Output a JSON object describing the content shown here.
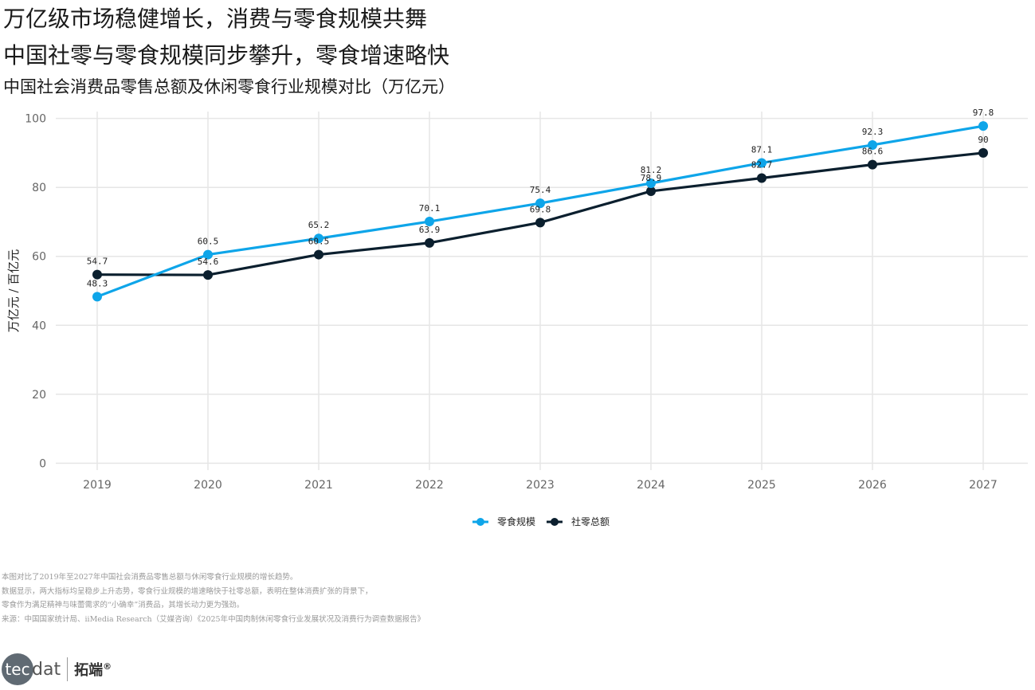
{
  "header": {
    "title_1": "万亿级市场稳健增长，消费与零食规模共舞",
    "title_2": "中国社零与零食规模同步攀升，零食增速略快",
    "subtitle": "中国社会消费品零售总额及休闲零食行业规模对比（万亿元）"
  },
  "chart_data": {
    "type": "line",
    "x": [
      "2019",
      "2020",
      "2021",
      "2022",
      "2023",
      "2024",
      "2025",
      "2026",
      "2027"
    ],
    "ylabel": "万亿元 / 百亿元",
    "ylim": [
      -2,
      102
    ],
    "yticks": [
      0,
      20,
      40,
      60,
      80,
      100
    ],
    "grid": true,
    "legend_position": "bottom-center",
    "series": [
      {
        "name": "零食规模",
        "color": "#0ea5e9",
        "values": [
          48.3,
          60.5,
          65.2,
          70.1,
          75.4,
          81.2,
          87.1,
          92.3,
          97.8
        ],
        "labels": [
          "48.3",
          "60.5",
          "65.2",
          "70.1",
          "75.4",
          "81.2",
          "87.1",
          "92.3",
          "97.8"
        ]
      },
      {
        "name": "社零总额",
        "color": "#0b1f2e",
        "values": [
          54.7,
          54.6,
          60.5,
          63.9,
          69.8,
          78.9,
          82.7,
          86.6,
          90
        ],
        "labels": [
          "54.7",
          "54.6",
          "60.5",
          "63.9",
          "69.8",
          "78.9",
          "82.7",
          "86.6",
          "90"
        ]
      }
    ]
  },
  "notes": [
    "本图对比了2019年至2027年中国社会消费品零售总额与休闲零食行业规模的增长趋势。",
    "数据显示，两大指标均呈稳步上升态势，零食行业规模的增速略快于社零总额，表明在整体消费扩张的背景下，",
    "零食作为满足精神与味蕾需求的“小确幸”消费品，其增长动力更为强劲。",
    "来源：中国国家统计局、iiMedia Research（艾媒咨询）《2025年中国肉制休闲零食行业发展状况及消费行为调查数据报告》"
  ],
  "logo": {
    "mark_circle": "tec",
    "mark_rest": "dat",
    "cn": "拓端",
    "reg": "®"
  }
}
